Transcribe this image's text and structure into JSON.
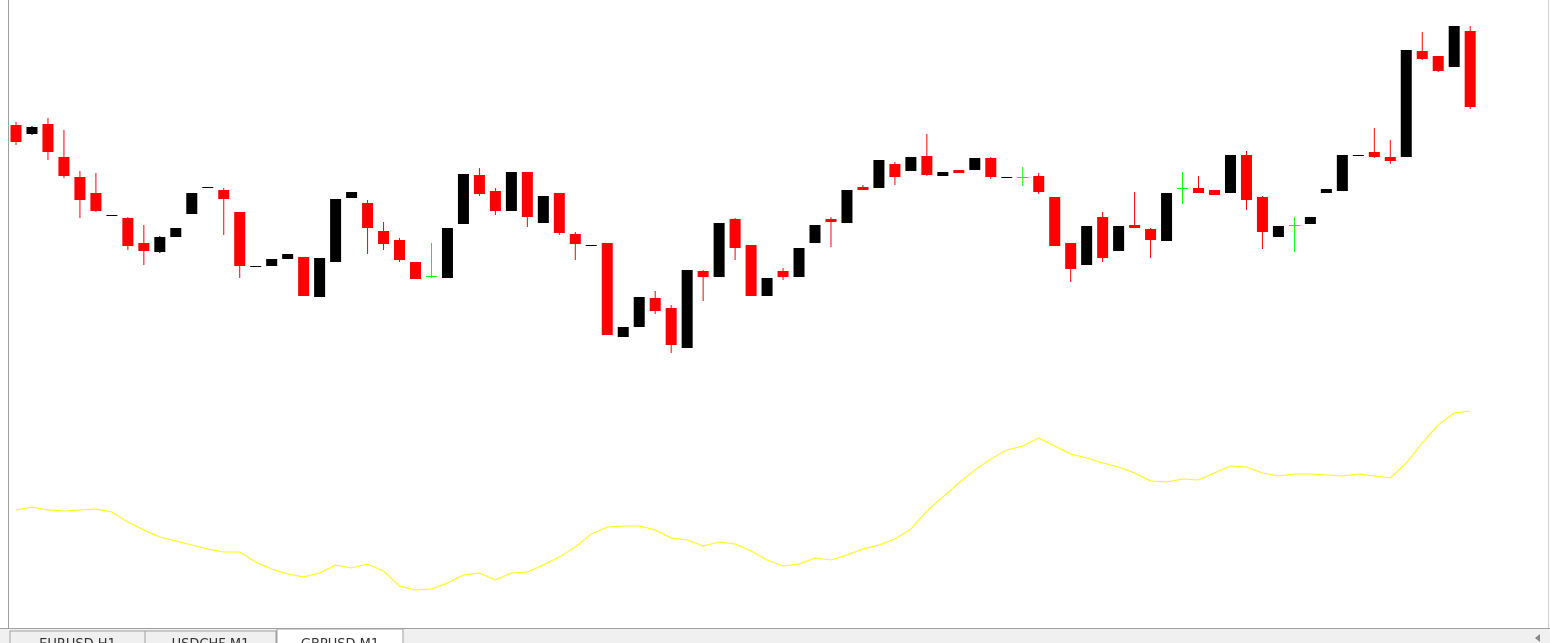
{
  "chart_data": {
    "type": "candlestick",
    "ylim": [
      0,
      628
    ],
    "up_color": "#000000",
    "down_color": "#ff0000",
    "doji_color": "#00ff00",
    "line_color": "#ffff00",
    "open": [
      503,
      494,
      504,
      471,
      451,
      435,
      413,
      410,
      385,
      376,
      391,
      414,
      441,
      438,
      416,
      362,
      362,
      369,
      371,
      331,
      366,
      430,
      425,
      397,
      388,
      366,
      352,
      350,
      404,
      453,
      437,
      417,
      456,
      405,
      435,
      394,
      383,
      385,
      291,
      301,
      330,
      320,
      280,
      357,
      351,
      409,
      383,
      332,
      357,
      351,
      385,
      409,
      405,
      441,
      440,
      464,
      457,
      472,
      452,
      458,
      458,
      470,
      451,
      451,
      452,
      431,
      385,
      363,
      411,
      377,
      403,
      399,
      387,
      440,
      440,
      438,
      435,
      473,
      431,
      391,
      403,
      404,
      435,
      437,
      473,
      476,
      471,
      471,
      577,
      572,
      561,
      597
    ],
    "high": [
      506,
      502,
      510,
      498,
      457,
      455,
      413,
      411,
      403,
      392,
      400,
      435,
      441,
      440,
      416,
      362,
      369,
      374,
      371,
      370,
      429,
      436,
      428,
      406,
      390,
      366,
      385,
      400,
      454,
      460,
      440,
      456,
      456,
      432,
      435,
      396,
      383,
      385,
      301,
      331,
      337,
      323,
      358,
      358,
      405,
      410,
      383,
      350,
      360,
      380,
      403,
      411,
      438,
      443,
      468,
      466,
      471,
      494,
      456,
      458,
      470,
      471,
      451,
      461,
      455,
      431,
      385,
      402,
      416,
      402,
      436,
      400,
      435,
      456,
      452,
      438,
      473,
      477,
      432,
      402,
      411,
      411,
      439,
      473,
      473,
      500,
      488,
      578,
      596,
      572,
      602,
      602
    ],
    "low": [
      483,
      493,
      468,
      450,
      410,
      416,
      413,
      378,
      363,
      375,
      391,
      414,
      441,
      393,
      350,
      362,
      362,
      369,
      332,
      331,
      366,
      430,
      374,
      378,
      366,
      349,
      350,
      350,
      404,
      432,
      413,
      417,
      401,
      405,
      393,
      368,
      383,
      293,
      291,
      301,
      314,
      275,
      280,
      327,
      351,
      368,
      332,
      332,
      348,
      351,
      385,
      381,
      405,
      438,
      440,
      443,
      457,
      452,
      452,
      455,
      458,
      449,
      451,
      442,
      434,
      382,
      346,
      363,
      366,
      377,
      400,
      370,
      387,
      424,
      435,
      433,
      435,
      418,
      379,
      391,
      376,
      404,
      435,
      437,
      473,
      470,
      464,
      471,
      568,
      556,
      561,
      519
    ],
    "close": [
      486,
      501,
      476,
      452,
      428,
      417,
      413,
      382,
      377,
      391,
      400,
      435,
      441,
      429,
      362,
      362,
      369,
      374,
      332,
      370,
      429,
      436,
      400,
      384,
      368,
      349,
      352,
      400,
      454,
      434,
      417,
      456,
      411,
      432,
      395,
      384,
      383,
      293,
      301,
      331,
      317,
      283,
      358,
      351,
      405,
      380,
      332,
      350,
      351,
      380,
      403,
      406,
      438,
      438,
      468,
      451,
      471,
      453,
      456,
      455,
      470,
      451,
      451,
      451,
      436,
      382,
      359,
      402,
      370,
      402,
      400,
      388,
      435,
      440,
      435,
      433,
      473,
      428,
      396,
      402,
      403,
      411,
      439,
      473,
      473,
      471,
      467,
      578,
      569,
      557,
      602,
      521
    ],
    "indicator": [
      118,
      121,
      118,
      117,
      118,
      119,
      116,
      106,
      98,
      91,
      87,
      83,
      79,
      76,
      76,
      66,
      59,
      54,
      51,
      55,
      63,
      60,
      64,
      57,
      42,
      38,
      39,
      45,
      53,
      55,
      48,
      55,
      56,
      63,
      71,
      81,
      94,
      101,
      102,
      102,
      98,
      90,
      88,
      82,
      86,
      84,
      77,
      68,
      62,
      64,
      70,
      68,
      73,
      79,
      83,
      89,
      99,
      117,
      131,
      145,
      158,
      169,
      178,
      182,
      190,
      182,
      174,
      170,
      165,
      161,
      155,
      147,
      146,
      149,
      148,
      155,
      162,
      161,
      155,
      152,
      154,
      154,
      153,
      152,
      154,
      152,
      150,
      165,
      185,
      203,
      215,
      217
    ]
  },
  "tabs": [
    "EURUSD,H1",
    "USDCHF,M1",
    "GBPUSD,M1"
  ]
}
